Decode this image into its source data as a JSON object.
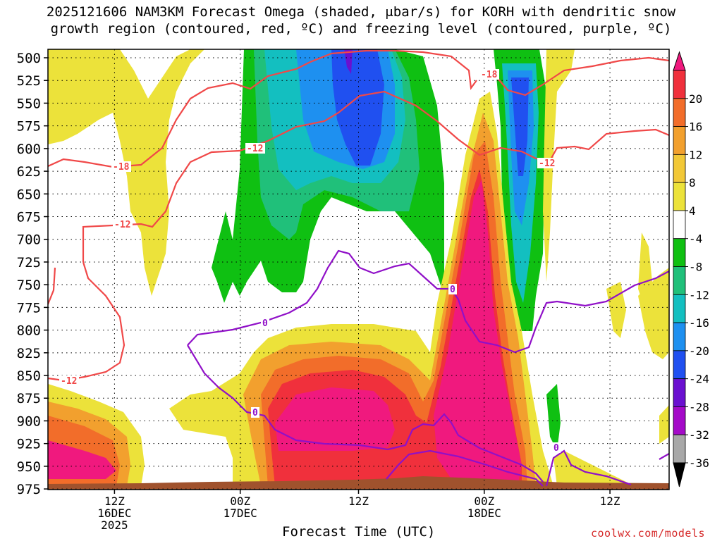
{
  "chart_data": {
    "type": "heatmap",
    "title": "2025121606 NAM3KM Forecast Omega (shaded, μbar/s) for KORH with dendritic snow",
    "subtitle": "growth region (contoured, red, ºC) and freezing level (contoured, purple, ºC)",
    "xlabel": "Forecast Time (UTC)",
    "ylabel": "",
    "x_range_hours": [
      0,
      84
    ],
    "y_levels": [
      500,
      525,
      550,
      575,
      600,
      625,
      650,
      675,
      700,
      725,
      750,
      775,
      800,
      825,
      850,
      875,
      900,
      925,
      950,
      975
    ],
    "ylim": [
      500,
      985
    ],
    "x_ticks": [
      {
        "hour": 9,
        "lines": [
          "12Z",
          "16DEC",
          "2025"
        ]
      },
      {
        "hour": 26,
        "lines": [
          "00Z",
          "17DEC"
        ]
      },
      {
        "hour": 42,
        "lines": [
          "12Z",
          ""
        ]
      },
      {
        "hour": 59,
        "lines": [
          "00Z",
          "18DEC"
        ]
      },
      {
        "hour": 76,
        "lines": [
          "12Z",
          ""
        ]
      }
    ],
    "colorbar": {
      "labels": [
        "20",
        "16",
        "12",
        "8",
        "4",
        "-4",
        "-8",
        "-12",
        "-16",
        "-20",
        "-24",
        "-28",
        "-32",
        "-36"
      ],
      "colors": [
        "#f0197e",
        "#f0303c",
        "#f26d2a",
        "#f2a02e",
        "#f2c837",
        "#ece23a",
        "#ffffff",
        "#0fc012",
        "#20c07a",
        "#13bfc0",
        "#1e90f0",
        "#2050f0",
        "#6a10d0",
        "#a40ac8",
        "#a8a8a8",
        "#000000"
      ]
    },
    "contours": [
      {
        "label": "-18",
        "color": "#f04848"
      },
      {
        "label": "-12",
        "color": "#f04848"
      },
      {
        "label": "0",
        "color": "#9010c8"
      }
    ],
    "grid": true
  },
  "credit": "coolwx.com/models"
}
